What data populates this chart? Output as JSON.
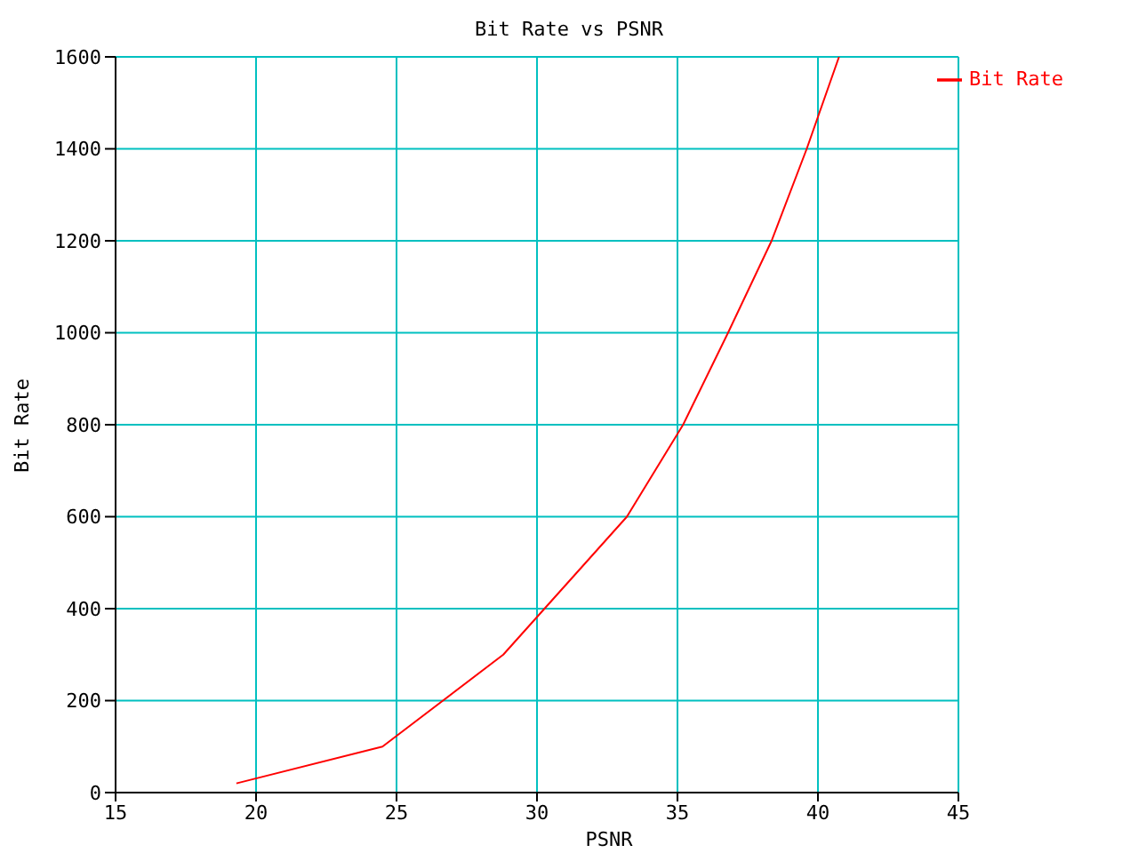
{
  "chart_data": {
    "type": "line",
    "title": "Bit Rate vs PSNR",
    "xlabel": "PSNR",
    "ylabel": "Bit Rate",
    "x": [
      19.3,
      24.5,
      28.8,
      33.2,
      35.2,
      36.8,
      38.35,
      39.6,
      40.75
    ],
    "series": [
      {
        "name": "Bit Rate",
        "color": "#ff0000",
        "values": [
          20,
          100,
          300,
          600,
          800,
          1000,
          1200,
          1400,
          1600
        ]
      }
    ],
    "xlim": [
      15,
      45
    ],
    "xticks": [
      15,
      20,
      25,
      30,
      35,
      40,
      45
    ],
    "ylim": [
      0,
      1600
    ],
    "yticks": [
      0,
      200,
      400,
      600,
      800,
      1000,
      1200,
      1400,
      1600
    ],
    "grid": true,
    "legend": "top right",
    "marker": "none",
    "line_style": "solid"
  }
}
